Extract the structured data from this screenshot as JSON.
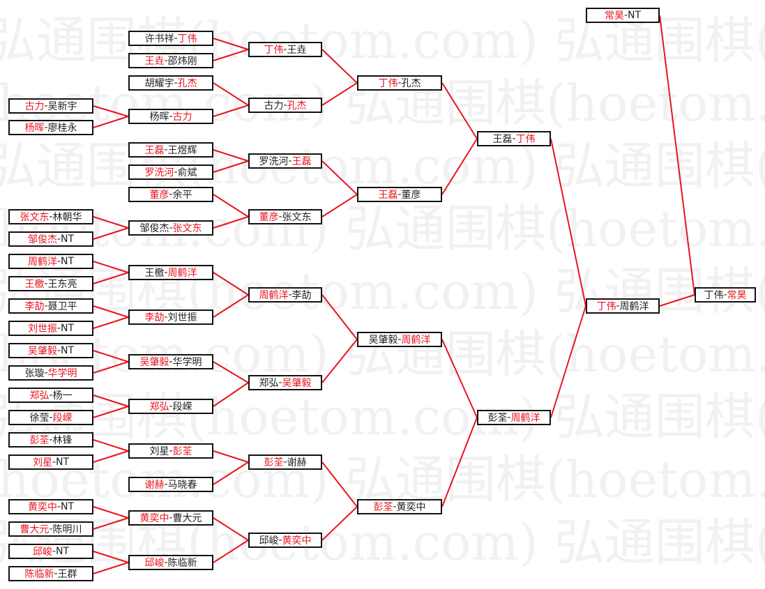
{
  "watermark": "弘通围棋(hoetom.com)",
  "colors": {
    "winner": "#e8141e",
    "line": "#e8141e",
    "text": "#222222"
  },
  "separator": "-",
  "matches": {
    "F": {
      "a": "丁伟",
      "b": "常昊",
      "winner": "b"
    },
    "S0": {
      "a": "常昊",
      "b": "NT",
      "winner": "a",
      "next": "F"
    },
    "S1": {
      "a": "丁伟",
      "b": "周鹤洋",
      "winner": "a",
      "next": "F"
    },
    "Q0": {
      "a": "王磊",
      "b": "丁伟",
      "winner": "b",
      "next": "S1"
    },
    "Q1": {
      "a": "彭荃",
      "b": "周鹤洋",
      "winner": "b",
      "next": "S1"
    },
    "R0": {
      "a": "丁伟",
      "b": "孔杰",
      "winner": "a",
      "next": "Q0"
    },
    "R1": {
      "a": "王磊",
      "b": "董彦",
      "winner": "a",
      "next": "Q0"
    },
    "R2": {
      "a": "吴肇毅",
      "b": "周鹤洋",
      "winner": "b",
      "next": "Q1"
    },
    "R3": {
      "a": "彭荃",
      "b": "黄奕中",
      "winner": "a",
      "next": "Q1"
    },
    "T0": {
      "a": "丁伟",
      "b": "王垚",
      "winner": "a",
      "next": "R0"
    },
    "T1": {
      "a": "古力",
      "b": "孔杰",
      "winner": "b",
      "next": "R0"
    },
    "T2": {
      "a": "罗洗河",
      "b": "王磊",
      "winner": "b",
      "next": "R1"
    },
    "T3": {
      "a": "董彦",
      "b": "张文东",
      "winner": "a",
      "next": "R1"
    },
    "T4": {
      "a": "周鹤洋",
      "b": "李劼",
      "winner": "a",
      "next": "R2"
    },
    "T5": {
      "a": "郑弘",
      "b": "吴肇毅",
      "winner": "b",
      "next": "R2"
    },
    "T6": {
      "a": "彭荃",
      "b": "谢赫",
      "winner": "a",
      "next": "R3"
    },
    "T7": {
      "a": "邱峻",
      "b": "黄奕中",
      "winner": "b",
      "next": "R3"
    },
    "U0": {
      "a": "许书祥",
      "b": "丁伟",
      "winner": "b",
      "next": "T0"
    },
    "U1": {
      "a": "王垚",
      "b": "邵炜刚",
      "winner": "a",
      "next": "T0"
    },
    "U2": {
      "a": "胡耀宇",
      "b": "孔杰",
      "winner": "b",
      "next": "T1"
    },
    "U3": {
      "a": "杨晖",
      "b": "古力",
      "winner": "b",
      "next": "T1"
    },
    "U4": {
      "a": "王磊",
      "b": "王煜辉",
      "winner": "a",
      "next": "T2"
    },
    "U5": {
      "a": "罗洗河",
      "b": "俞斌",
      "winner": "a",
      "next": "T2"
    },
    "U6": {
      "a": "董彦",
      "b": "余平",
      "winner": "a",
      "next": "T3"
    },
    "U7": {
      "a": "邹俊杰",
      "b": "张文东",
      "winner": "b",
      "next": "T3"
    },
    "U8": {
      "a": "王檄",
      "b": "周鹤洋",
      "winner": "b",
      "next": "T4"
    },
    "U9": {
      "a": "李劼",
      "b": "刘世振",
      "winner": "a",
      "next": "T4"
    },
    "U10": {
      "a": "吴肇毅",
      "b": "华学明",
      "winner": "a",
      "next": "T5"
    },
    "U11": {
      "a": "郑弘",
      "b": "段嵘",
      "winner": "a",
      "next": "T5"
    },
    "U12": {
      "a": "刘星",
      "b": "彭荃",
      "winner": "b",
      "next": "T6"
    },
    "U13": {
      "a": "谢赫",
      "b": "马晓春",
      "winner": "a",
      "next": "T6"
    },
    "U14": {
      "a": "黄奕中",
      "b": "曹大元",
      "winner": "a",
      "next": "T7"
    },
    "U15": {
      "a": "邱峻",
      "b": "陈临新",
      "winner": "a",
      "next": "T7"
    },
    "V0": {
      "a": "古力",
      "b": "吴新宇",
      "winner": "a",
      "next": "U3"
    },
    "V1": {
      "a": "杨晖",
      "b": "廖桂永",
      "winner": "a",
      "next": "U3"
    },
    "V2": {
      "a": "张文东",
      "b": "林朝华",
      "winner": "a",
      "next": "U7"
    },
    "V3": {
      "a": "邹俊杰",
      "b": "NT",
      "winner": "a",
      "next": "U7"
    },
    "V4": {
      "a": "周鹤洋",
      "b": "NT",
      "winner": "a",
      "next": "U8"
    },
    "V5": {
      "a": "王檄",
      "b": "王东亮",
      "winner": "a",
      "next": "U8"
    },
    "V6": {
      "a": "李劼",
      "b": "聂卫平",
      "winner": "a",
      "next": "U9"
    },
    "V7": {
      "a": "刘世振",
      "b": "NT",
      "winner": "a",
      "next": "U9"
    },
    "V8": {
      "a": "吴肇毅",
      "b": "NT",
      "winner": "a",
      "next": "U10"
    },
    "V9": {
      "a": "张璇",
      "b": "华学明",
      "winner": "b",
      "next": "U10"
    },
    "V10": {
      "a": "郑弘",
      "b": "杨一",
      "winner": "a",
      "next": "U11"
    },
    "V11": {
      "a": "徐莹",
      "b": "段嵘",
      "winner": "b",
      "next": "U11"
    },
    "V12": {
      "a": "彭荃",
      "b": "林锋",
      "winner": "a",
      "next": "U12"
    },
    "V13": {
      "a": "刘星",
      "b": "NT",
      "winner": "a",
      "next": "U12"
    },
    "V14": {
      "a": "黄奕中",
      "b": "NT",
      "winner": "a",
      "next": "U14"
    },
    "V15": {
      "a": "曹大元",
      "b": "陈明川",
      "winner": "a",
      "next": "U14"
    },
    "V16": {
      "a": "邱峻",
      "b": "NT",
      "winner": "a",
      "next": "U15"
    },
    "V17": {
      "a": "陈临新",
      "b": "王群",
      "winner": "a",
      "next": "U15"
    }
  }
}
